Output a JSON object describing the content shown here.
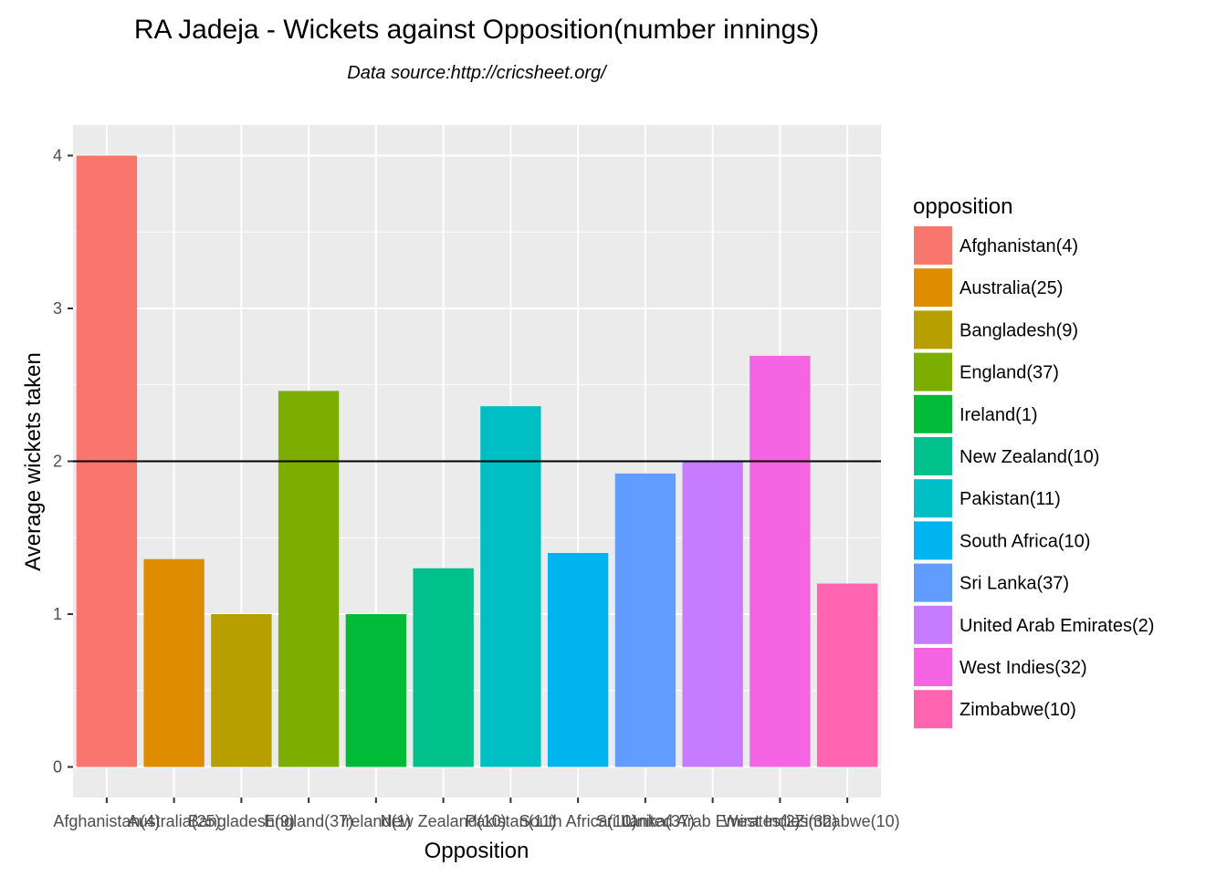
{
  "chart_data": {
    "type": "bar",
    "title": "RA Jadeja - Wickets against Opposition(number innings)",
    "subtitle": "Data source:http://cricsheet.org/",
    "xlabel": "Opposition",
    "ylabel": "Average wickets taken",
    "ylim": [
      -0.2,
      4.2
    ],
    "yticks": [
      0,
      1,
      2,
      3,
      4
    ],
    "categories": [
      "Afghanistan(4)",
      "Australia(25)",
      "Bangladesh(9)",
      "England(37)",
      "Ireland(1)",
      "New Zealand(10)",
      "Pakistan(11)",
      "South Africa(10)",
      "Sri Lanka(37)",
      "United Arab Emirates(2)",
      "West Indies(32)",
      "Zimbabwe(10)"
    ],
    "values": [
      4.0,
      1.36,
      1.0,
      2.46,
      1.0,
      1.3,
      2.36,
      1.4,
      1.92,
      2.0,
      2.69,
      1.2
    ],
    "colors": [
      "#F8766D",
      "#DE8C00",
      "#B79F00",
      "#7CAE00",
      "#00BA38",
      "#00C08B",
      "#00BFC4",
      "#00B4F0",
      "#619CFF",
      "#C77CFF",
      "#F564E3",
      "#FF64B0"
    ],
    "reference_line": 2,
    "legend": {
      "title": "opposition",
      "position": "right"
    },
    "grid": true,
    "panel_background": "#EBEBEB",
    "grid_color": "#FFFFFF",
    "reference_line_color": "#000000"
  }
}
